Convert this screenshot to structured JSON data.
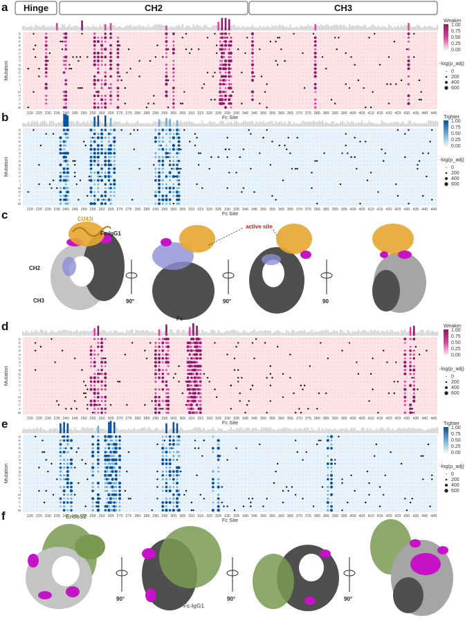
{
  "domains": {
    "hinge": "Hinge",
    "ch2": "CH2",
    "ch3": "CH3"
  },
  "panel_letters": [
    "a",
    "b",
    "c",
    "d",
    "e",
    "f"
  ],
  "colors": {
    "weaker_high": "#8b1a6b",
    "weaker_mid": "#e23fa0",
    "weaker_bg": "#fbe3e6",
    "tighter_high": "#08519c",
    "tighter_mid": "#6baed6",
    "tighter_bg": "#e8f2fb",
    "gray_bar": "#d4d4d4",
    "dark_surface": "#4a4a4a",
    "light_surface": "#bdbdbd",
    "magenta": "#d61bd6",
    "orange_protein": "#e8a630",
    "green_protein": "#7a9a52"
  },
  "chart_data": [
    {
      "panel": "a",
      "type": "heatmap",
      "xlabel": "Fc Site",
      "ylabel": "Mutation",
      "x_ticks": [
        220,
        225,
        230,
        235,
        240,
        245,
        250,
        255,
        260,
        265,
        270,
        275,
        280,
        285,
        290,
        295,
        300,
        305,
        310,
        315,
        320,
        325,
        330,
        335,
        340,
        345,
        350,
        355,
        360,
        365,
        370,
        375,
        380,
        385,
        390,
        395,
        400,
        405,
        410,
        415,
        420,
        425,
        430,
        435,
        440,
        445
      ],
      "mutations": [
        "D",
        "E",
        "K",
        "R",
        "H",
        "C",
        "S",
        "T",
        "N",
        "Q",
        "G",
        "A",
        "V",
        "L",
        "I",
        "M",
        "P",
        "F",
        "Y",
        "W"
      ],
      "color_scale": {
        "title": "Weaker",
        "ticks": [
          "1.00",
          "0.75",
          "0.50",
          "0.25",
          "0.00"
        ]
      },
      "size_scale": {
        "title": "-log(p_adj)",
        "ticks": [
          "0",
          "200",
          "400",
          "600"
        ]
      },
      "hotspots": [
        229,
        239,
        240,
        256,
        258,
        260,
        262,
        265,
        269,
        296,
        300,
        326,
        327,
        328,
        329,
        331,
        332,
        344,
        379,
        431
      ],
      "top_bar_peaks": [
        {
          "site": 235,
          "value": 0.6
        },
        {
          "site": 249,
          "value": 0.8
        },
        {
          "site": 262,
          "value": 0.5
        },
        {
          "site": 265,
          "value": 0.6
        },
        {
          "site": 296,
          "value": 0.4
        },
        {
          "site": 325,
          "value": 0.7
        },
        {
          "site": 327,
          "value": 1.0
        },
        {
          "site": 329,
          "value": 1.0
        },
        {
          "site": 331,
          "value": 0.9
        },
        {
          "site": 379,
          "value": 0.5
        },
        {
          "site": 431,
          "value": 0.6
        }
      ]
    },
    {
      "panel": "b",
      "type": "heatmap",
      "xlabel": "Fc Site",
      "ylabel": "Mutation",
      "x_ticks": [
        220,
        225,
        230,
        235,
        240,
        245,
        250,
        255,
        260,
        265,
        270,
        275,
        280,
        285,
        290,
        295,
        300,
        305,
        310,
        315,
        320,
        325,
        330,
        335,
        340,
        345,
        350,
        355,
        360,
        365,
        370,
        375,
        380,
        385,
        390,
        395,
        400,
        405,
        410,
        415,
        420,
        425,
        430,
        435,
        440,
        445
      ],
      "mutations": [
        "D",
        "E",
        "K",
        "R",
        "H",
        "C",
        "S",
        "T",
        "N",
        "Q",
        "G",
        "A",
        "V",
        "L",
        "I",
        "M",
        "P",
        "F",
        "Y",
        "W"
      ],
      "color_scale": {
        "title": "Tighter",
        "ticks": [
          "1.00",
          "0.75",
          "0.50",
          "0.25",
          "0.00"
        ]
      },
      "size_scale": {
        "title": "-log(p_adj)",
        "ticks": [
          "0",
          "200",
          "400",
          "600"
        ]
      },
      "hotspots": [
        237,
        239,
        240,
        241,
        254,
        256,
        258,
        260,
        262,
        264,
        265,
        267,
        290,
        292,
        294,
        296,
        298,
        300,
        302,
        303
      ],
      "top_bar_peaks": [
        {
          "site": 239,
          "value": 1.0
        },
        {
          "site": 240,
          "value": 1.0
        },
        {
          "site": 241,
          "value": 0.9
        },
        {
          "site": 256,
          "value": 0.8
        },
        {
          "site": 258,
          "value": 0.9
        },
        {
          "site": 262,
          "value": 0.9
        },
        {
          "site": 265,
          "value": 0.7
        },
        {
          "site": 292,
          "value": 0.6
        },
        {
          "site": 296,
          "value": 0.7
        },
        {
          "site": 298,
          "value": 0.6
        },
        {
          "site": 302,
          "value": 0.5
        }
      ]
    },
    {
      "panel": "d",
      "type": "heatmap",
      "xlabel": "Fc Site",
      "ylabel": "Mutation",
      "x_ticks": [
        220,
        225,
        230,
        235,
        240,
        245,
        250,
        255,
        260,
        265,
        270,
        275,
        280,
        285,
        290,
        295,
        300,
        305,
        310,
        315,
        320,
        325,
        330,
        335,
        340,
        345,
        350,
        355,
        360,
        365,
        370,
        375,
        380,
        385,
        390,
        395,
        400,
        405,
        410,
        415,
        420,
        425,
        430,
        435,
        440,
        445
      ],
      "mutations": [
        "D",
        "E",
        "K",
        "R",
        "H",
        "C",
        "S",
        "T",
        "N",
        "Q",
        "G",
        "A",
        "V",
        "L",
        "I",
        "M",
        "P",
        "F",
        "Y",
        "W"
      ],
      "color_scale": {
        "title": "Weaker",
        "ticks": [
          "1.00",
          "0.75",
          "0.50",
          "0.25",
          "0.00"
        ]
      },
      "size_scale": {
        "title": "-log(p_adj)",
        "ticks": [
          "0",
          "200",
          "400",
          "600"
        ]
      },
      "hotspots": [
        254,
        256,
        258,
        260,
        262,
        290,
        292,
        294,
        296,
        297,
        308,
        309,
        310,
        311,
        312,
        313,
        314,
        315,
        429,
        432,
        434
      ],
      "top_bar_peaks": [
        {
          "site": 256,
          "value": 0.6
        },
        {
          "site": 258,
          "value": 0.8
        },
        {
          "site": 292,
          "value": 0.5
        },
        {
          "site": 296,
          "value": 0.9
        },
        {
          "site": 309,
          "value": 0.7
        },
        {
          "site": 311,
          "value": 1.0
        },
        {
          "site": 313,
          "value": 0.8
        },
        {
          "site": 432,
          "value": 0.7
        },
        {
          "site": 434,
          "value": 0.8
        }
      ]
    },
    {
      "panel": "e",
      "type": "heatmap",
      "xlabel": "Fc Site",
      "ylabel": "Mutation",
      "x_ticks": [
        220,
        225,
        230,
        235,
        240,
        245,
        250,
        255,
        260,
        265,
        270,
        275,
        280,
        285,
        290,
        295,
        300,
        305,
        310,
        315,
        320,
        325,
        330,
        335,
        340,
        345,
        350,
        355,
        360,
        365,
        370,
        375,
        380,
        385,
        390,
        395,
        400,
        405,
        410,
        415,
        420,
        425,
        430,
        435,
        440,
        445
      ],
      "mutations": [
        "D",
        "E",
        "K",
        "R",
        "H",
        "C",
        "S",
        "T",
        "N",
        "Q",
        "G",
        "A",
        "V",
        "L",
        "I",
        "M",
        "P",
        "F",
        "Y",
        "W"
      ],
      "color_scale": {
        "title": "Tighter",
        "ticks": [
          "1.00",
          "0.75",
          "0.50",
          "0.25",
          "0.00"
        ]
      },
      "size_scale": {
        "title": "-log(p_adj)",
        "ticks": [
          "0",
          "200",
          "400",
          "600"
        ]
      },
      "hotspots": [
        237,
        239,
        241,
        243,
        255,
        258,
        262,
        263,
        264,
        265,
        266,
        267,
        268,
        270,
        294,
        296,
        298,
        300,
        302,
        303,
        322,
        325,
        386,
        388
      ],
      "top_bar_peaks": [
        {
          "site": 237,
          "value": 0.8
        },
        {
          "site": 239,
          "value": 0.9
        },
        {
          "site": 241,
          "value": 0.8
        },
        {
          "site": 258,
          "value": 0.6
        },
        {
          "site": 264,
          "value": 0.9
        },
        {
          "site": 265,
          "value": 1.0
        },
        {
          "site": 267,
          "value": 0.9
        },
        {
          "site": 296,
          "value": 0.8
        },
        {
          "site": 300,
          "value": 0.9
        },
        {
          "site": 302,
          "value": 0.8
        }
      ]
    }
  ],
  "structure_c": {
    "labels": {
      "ligand": "CU43i",
      "fc": "Fc-IgG1",
      "ch2": "CH2",
      "ch3": "CH3",
      "active_site": "active site",
      "fc_minus": "Fc-"
    },
    "rotations": [
      "90°",
      "90°",
      "90"
    ]
  },
  "structure_f": {
    "labels": {
      "ligand": "EndoS2",
      "fc": "Fc-IgG1"
    },
    "rotations": [
      "90°",
      "90°",
      "90°"
    ]
  }
}
